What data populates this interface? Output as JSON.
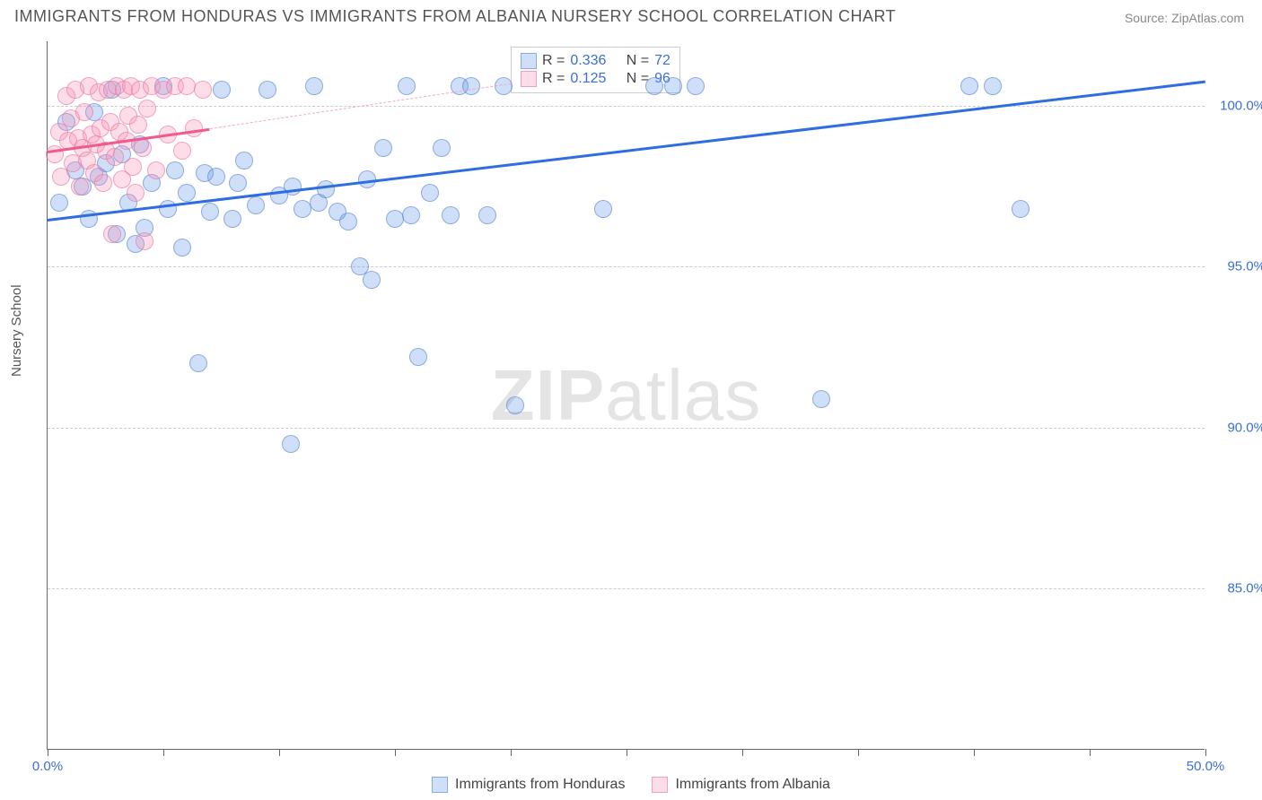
{
  "title": "IMMIGRANTS FROM HONDURAS VS IMMIGRANTS FROM ALBANIA NURSERY SCHOOL CORRELATION CHART",
  "source": "Source: ZipAtlas.com",
  "ylabel": "Nursery School",
  "watermark_bold": "ZIP",
  "watermark_light": "atlas",
  "chart": {
    "type": "scatter",
    "xlim": [
      0,
      50
    ],
    "ylim": [
      80,
      102
    ],
    "xtick_positions": [
      0,
      5,
      10,
      15,
      20,
      25,
      30,
      35,
      40,
      45,
      50
    ],
    "xtick_labels": {
      "0": "0.0%",
      "50": "50.0%"
    },
    "ytick_positions": [
      85,
      90,
      95,
      100
    ],
    "ytick_labels": {
      "85": "85.0%",
      "90": "90.0%",
      "95": "95.0%",
      "100": "100.0%"
    },
    "background_color": "#ffffff",
    "grid_color": "#cccccc",
    "axis_color": "#666666",
    "label_color": "#3a6fd8",
    "point_radius": 10,
    "point_outline_opacity": 0.55,
    "point_fill_opacity": 0.32,
    "series": [
      {
        "name": "Immigrants from Honduras",
        "color": "#6a9be8",
        "fill": "rgba(106,155,232,0.32)",
        "stroke": "rgba(78,128,210,0.55)",
        "R": "0.336",
        "N": "72",
        "trend": {
          "x1": 0,
          "y1": 96.5,
          "x2": 50,
          "y2": 100.8,
          "color": "#2f6de0",
          "width": 3,
          "dash": false
        },
        "points": [
          [
            0.5,
            97.0
          ],
          [
            0.8,
            99.5
          ],
          [
            1.2,
            98.0
          ],
          [
            1.5,
            97.5
          ],
          [
            1.8,
            96.5
          ],
          [
            2.0,
            99.8
          ],
          [
            2.2,
            97.8
          ],
          [
            2.5,
            98.2
          ],
          [
            2.8,
            100.5
          ],
          [
            3.0,
            96.0
          ],
          [
            3.2,
            98.5
          ],
          [
            3.5,
            97.0
          ],
          [
            3.8,
            95.7
          ],
          [
            4.0,
            98.8
          ],
          [
            4.2,
            96.2
          ],
          [
            4.5,
            97.6
          ],
          [
            5.0,
            100.6
          ],
          [
            5.2,
            96.8
          ],
          [
            5.5,
            98.0
          ],
          [
            5.8,
            95.6
          ],
          [
            6.0,
            97.3
          ],
          [
            6.5,
            92.0
          ],
          [
            6.8,
            97.9
          ],
          [
            7.0,
            96.7
          ],
          [
            7.3,
            97.8
          ],
          [
            7.5,
            100.5
          ],
          [
            8.0,
            96.5
          ],
          [
            8.2,
            97.6
          ],
          [
            8.5,
            98.3
          ],
          [
            9.0,
            96.9
          ],
          [
            9.5,
            100.5
          ],
          [
            10.0,
            97.2
          ],
          [
            10.5,
            89.5
          ],
          [
            10.6,
            97.5
          ],
          [
            11.0,
            96.8
          ],
          [
            11.5,
            100.6
          ],
          [
            11.7,
            97.0
          ],
          [
            12.0,
            97.4
          ],
          [
            12.5,
            96.7
          ],
          [
            13.0,
            96.4
          ],
          [
            13.5,
            95.0
          ],
          [
            13.8,
            97.7
          ],
          [
            14.0,
            94.6
          ],
          [
            14.5,
            98.7
          ],
          [
            15.0,
            96.5
          ],
          [
            15.5,
            100.6
          ],
          [
            15.7,
            96.6
          ],
          [
            16.0,
            92.2
          ],
          [
            16.5,
            97.3
          ],
          [
            17.0,
            98.7
          ],
          [
            17.4,
            96.6
          ],
          [
            17.8,
            100.6
          ],
          [
            18.3,
            100.6
          ],
          [
            19.0,
            96.6
          ],
          [
            19.7,
            100.6
          ],
          [
            20.2,
            90.7
          ],
          [
            24.0,
            96.8
          ],
          [
            26.2,
            100.6
          ],
          [
            27.0,
            100.6
          ],
          [
            28.0,
            100.6
          ],
          [
            33.4,
            90.9
          ],
          [
            39.8,
            100.6
          ],
          [
            40.8,
            100.6
          ],
          [
            42.0,
            96.8
          ]
        ]
      },
      {
        "name": "Immigrants from Albania",
        "color": "#f5a8c0",
        "fill": "rgba(245,150,185,0.32)",
        "stroke": "rgba(235,110,155,0.55)",
        "R": "0.125",
        "N": "96",
        "trend": {
          "x1": 0,
          "y1": 98.6,
          "x2": 7,
          "y2": 99.3,
          "color": "#f05a8c",
          "width": 3,
          "dash": false
        },
        "trend_ext": {
          "x1": 7,
          "y1": 99.3,
          "x2": 20,
          "y2": 100.7,
          "color": "#f5a8c0",
          "width": 1.5,
          "dash": true
        },
        "points": [
          [
            0.3,
            98.5
          ],
          [
            0.5,
            99.2
          ],
          [
            0.6,
            97.8
          ],
          [
            0.8,
            100.3
          ],
          [
            0.9,
            98.9
          ],
          [
            1.0,
            99.6
          ],
          [
            1.1,
            98.2
          ],
          [
            1.2,
            100.5
          ],
          [
            1.3,
            99.0
          ],
          [
            1.4,
            97.5
          ],
          [
            1.5,
            98.7
          ],
          [
            1.6,
            99.8
          ],
          [
            1.7,
            98.3
          ],
          [
            1.8,
            100.6
          ],
          [
            1.9,
            99.1
          ],
          [
            2.0,
            97.9
          ],
          [
            2.1,
            98.8
          ],
          [
            2.2,
            100.4
          ],
          [
            2.3,
            99.3
          ],
          [
            2.4,
            97.6
          ],
          [
            2.5,
            98.6
          ],
          [
            2.6,
            100.5
          ],
          [
            2.7,
            99.5
          ],
          [
            2.8,
            96.0
          ],
          [
            2.9,
            98.4
          ],
          [
            3.0,
            100.6
          ],
          [
            3.1,
            99.2
          ],
          [
            3.2,
            97.7
          ],
          [
            3.3,
            100.5
          ],
          [
            3.4,
            98.9
          ],
          [
            3.5,
            99.7
          ],
          [
            3.6,
            100.6
          ],
          [
            3.7,
            98.1
          ],
          [
            3.8,
            97.3
          ],
          [
            3.9,
            99.4
          ],
          [
            4.0,
            100.5
          ],
          [
            4.1,
            98.7
          ],
          [
            4.3,
            99.9
          ],
          [
            4.5,
            100.6
          ],
          [
            4.7,
            98.0
          ],
          [
            5.0,
            100.5
          ],
          [
            5.2,
            99.1
          ],
          [
            5.5,
            100.6
          ],
          [
            5.8,
            98.6
          ],
          [
            6.0,
            100.6
          ],
          [
            6.3,
            99.3
          ],
          [
            6.7,
            100.5
          ],
          [
            4.2,
            95.8
          ]
        ]
      }
    ]
  },
  "legend_top": {
    "R_label": "R =",
    "N_label": "N ="
  },
  "legend_bottom": {
    "items": [
      "Immigrants from Honduras",
      "Immigrants from Albania"
    ]
  }
}
